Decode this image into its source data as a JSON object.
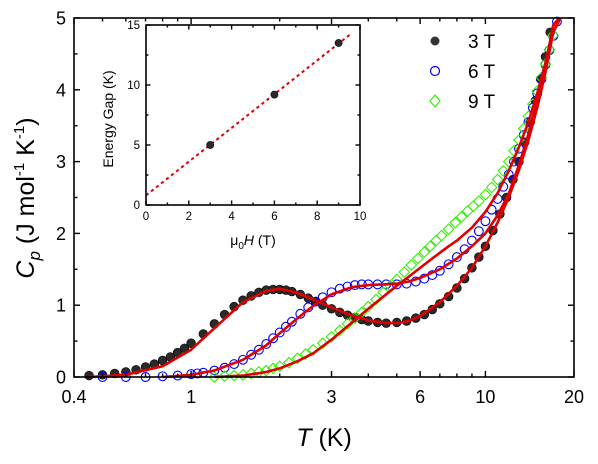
{
  "chart_data": [
    {
      "type": "scatter",
      "subtype": "scatter-with-fit-lines",
      "xscale": "log",
      "xlim": [
        0.4,
        20
      ],
      "ylim": [
        0,
        5
      ],
      "xticks": [
        0.4,
        1,
        3,
        6,
        10,
        20
      ],
      "xtick_labels": [
        "0.4",
        "1",
        "3",
        "6",
        "10",
        "20"
      ],
      "yticks": [
        0,
        1,
        2,
        3,
        4,
        5
      ],
      "ytick_labels": [
        "0",
        "1",
        "2",
        "3",
        "4",
        "5"
      ],
      "ylabel": {
        "main": "C",
        "sub": "p",
        "units_pre": " (J mol",
        "sup1": "-1",
        "units_mid": " K",
        "sup2": "-1",
        "units_post": ")"
      },
      "xlabel": {
        "main": "T",
        "units": " (K)"
      },
      "legend_position": "top-right",
      "colors": {
        "fit": "#e00000",
        "s3": "#000000",
        "s6": "#0000ff",
        "s9": "#33ee00"
      },
      "series": [
        {
          "name": "3 T",
          "marker": "filled-circle",
          "x": [
            0.45,
            0.5,
            0.55,
            0.6,
            0.65,
            0.7,
            0.75,
            0.8,
            0.85,
            0.9,
            0.95,
            1.0,
            1.1,
            1.2,
            1.3,
            1.4,
            1.5,
            1.6,
            1.7,
            1.8,
            1.9,
            2.0,
            2.1,
            2.2,
            2.35,
            2.5,
            2.65,
            2.8,
            3.0,
            3.2,
            3.4,
            3.6,
            3.8,
            4.0,
            4.3,
            4.6,
            5.0,
            5.4,
            5.8,
            6.2,
            6.6,
            7.0,
            7.5,
            8.0,
            8.5,
            9.0,
            9.5,
            10.0,
            10.6,
            11.2,
            11.8,
            12.4,
            13.0,
            13.6,
            14.2,
            14.8,
            15.4,
            16.0,
            16.6,
            17.2
          ],
          "y": [
            0.02,
            0.03,
            0.05,
            0.07,
            0.1,
            0.14,
            0.18,
            0.23,
            0.28,
            0.34,
            0.4,
            0.47,
            0.6,
            0.74,
            0.87,
            0.98,
            1.07,
            1.13,
            1.18,
            1.21,
            1.22,
            1.22,
            1.21,
            1.19,
            1.15,
            1.1,
            1.05,
            1.0,
            0.95,
            0.9,
            0.86,
            0.83,
            0.8,
            0.78,
            0.76,
            0.75,
            0.76,
            0.78,
            0.82,
            0.87,
            0.94,
            1.02,
            1.12,
            1.24,
            1.37,
            1.52,
            1.67,
            1.82,
            2.04,
            2.27,
            2.5,
            2.75,
            3.0,
            3.27,
            3.55,
            3.85,
            4.15,
            4.46,
            4.8,
            5.1
          ]
        },
        {
          "name": "6 T",
          "marker": "open-circle",
          "x": [
            0.5,
            0.6,
            0.7,
            0.8,
            0.9,
            1.0,
            1.05,
            1.1,
            1.2,
            1.3,
            1.4,
            1.5,
            1.6,
            1.7,
            1.8,
            1.9,
            2.0,
            2.1,
            2.2,
            2.35,
            2.5,
            2.65,
            2.8,
            3.0,
            3.2,
            3.4,
            3.6,
            3.8,
            4.0,
            4.3,
            4.6,
            5.0,
            5.4,
            5.8,
            6.2,
            6.6,
            7.0,
            7.5,
            8.0,
            8.5,
            9.0,
            9.5,
            10.0,
            10.5,
            11.0,
            11.5,
            12.0,
            12.5,
            13.0,
            13.5,
            14.0,
            14.5,
            15.0,
            15.5,
            16.0,
            16.5,
            17.0,
            17.5
          ],
          "y": [
            0.0,
            0.0,
            0.0,
            0.01,
            0.02,
            0.04,
            0.05,
            0.06,
            0.09,
            0.13,
            0.18,
            0.24,
            0.31,
            0.38,
            0.46,
            0.54,
            0.62,
            0.7,
            0.77,
            0.88,
            0.97,
            1.05,
            1.11,
            1.18,
            1.23,
            1.26,
            1.28,
            1.29,
            1.29,
            1.29,
            1.29,
            1.29,
            1.3,
            1.33,
            1.37,
            1.42,
            1.48,
            1.57,
            1.67,
            1.78,
            1.9,
            2.03,
            2.17,
            2.33,
            2.48,
            2.65,
            2.82,
            3.0,
            3.18,
            3.37,
            3.55,
            3.75,
            3.95,
            4.15,
            4.35,
            4.55,
            4.75,
            4.95
          ]
        },
        {
          "name": "9 T",
          "marker": "open-diamond",
          "x": [
            1.2,
            1.3,
            1.4,
            1.5,
            1.6,
            1.7,
            1.8,
            1.9,
            2.0,
            2.15,
            2.3,
            2.45,
            2.6,
            2.8,
            3.0,
            3.2,
            3.4,
            3.6,
            3.8,
            4.0,
            4.25,
            4.5,
            4.75,
            5.0,
            5.3,
            5.6,
            5.9,
            6.2,
            6.5,
            6.8,
            7.1,
            7.5,
            7.9,
            8.3,
            8.7,
            9.1,
            9.5,
            10.0,
            10.5,
            11.0,
            11.5,
            12.0,
            12.5,
            13.0,
            13.5,
            14.0,
            14.5,
            15.0,
            15.5,
            16.0,
            16.5,
            17.0
          ],
          "y": [
            0.0,
            0.01,
            0.02,
            0.03,
            0.05,
            0.07,
            0.09,
            0.12,
            0.15,
            0.2,
            0.26,
            0.32,
            0.38,
            0.47,
            0.56,
            0.65,
            0.74,
            0.82,
            0.9,
            0.98,
            1.08,
            1.18,
            1.27,
            1.36,
            1.46,
            1.56,
            1.65,
            1.74,
            1.82,
            1.9,
            1.97,
            2.06,
            2.15,
            2.23,
            2.31,
            2.38,
            2.45,
            2.54,
            2.64,
            2.75,
            2.87,
            3.0,
            3.15,
            3.3,
            3.46,
            3.63,
            3.8,
            3.98,
            4.17,
            4.36,
            4.56,
            4.76
          ]
        }
      ],
      "fit_curves": [
        {
          "x": [
            0.45,
            0.6,
            0.8,
            1.0,
            1.2,
            1.5,
            1.8,
            2.0,
            2.3,
            2.6,
            3.0,
            3.5,
            4.0,
            4.6,
            5.0,
            5.5,
            6.0,
            7.0,
            8.0,
            9.0,
            10.0,
            11.0,
            12.0,
            13.0,
            14.0,
            15.0,
            16.0,
            17.0,
            18.0
          ],
          "y": [
            0.0,
            0.03,
            0.15,
            0.38,
            0.68,
            1.04,
            1.2,
            1.23,
            1.17,
            1.08,
            0.97,
            0.86,
            0.79,
            0.75,
            0.75,
            0.78,
            0.85,
            1.04,
            1.27,
            1.52,
            1.82,
            2.15,
            2.5,
            2.88,
            3.3,
            3.75,
            4.25,
            4.8,
            5.4
          ]
        },
        {
          "x": [
            0.8,
            1.0,
            1.2,
            1.5,
            1.8,
            2.0,
            2.3,
            2.6,
            3.0,
            3.5,
            4.0,
            4.5,
            5.0,
            5.5,
            6.0,
            7.0,
            8.0,
            9.0,
            10.0,
            11.0,
            12.0,
            13.0,
            14.0,
            15.0,
            16.0,
            17.0,
            17.8
          ],
          "y": [
            0.0,
            0.03,
            0.09,
            0.24,
            0.44,
            0.61,
            0.82,
            0.99,
            1.15,
            1.25,
            1.28,
            1.29,
            1.3,
            1.33,
            1.38,
            1.5,
            1.65,
            1.82,
            2.0,
            2.25,
            2.55,
            2.95,
            3.38,
            3.85,
            4.35,
            4.9,
            5.4
          ]
        },
        {
          "x": [
            1.2,
            1.5,
            1.8,
            2.0,
            2.3,
            2.6,
            3.0,
            3.5,
            4.0,
            4.5,
            5.0,
            5.5,
            6.0,
            6.5,
            7.0,
            7.5,
            8.0,
            9.0,
            10.0,
            11.0,
            12.0,
            13.0,
            14.0,
            15.0,
            16.0,
            17.0
          ],
          "y": [
            0.0,
            0.02,
            0.07,
            0.12,
            0.22,
            0.33,
            0.52,
            0.75,
            0.95,
            1.12,
            1.27,
            1.4,
            1.52,
            1.63,
            1.73,
            1.82,
            1.9,
            2.08,
            2.3,
            2.56,
            2.87,
            3.2,
            3.55,
            3.95,
            4.38,
            4.85
          ]
        }
      ]
    },
    {
      "type": "scatter",
      "subtype": "inset-linear-fit",
      "xlim": [
        0,
        10
      ],
      "ylim": [
        0,
        15
      ],
      "xticks": [
        0,
        2,
        4,
        6,
        8,
        10
      ],
      "xtick_labels": [
        "0",
        "2",
        "4",
        "6",
        "8",
        "10"
      ],
      "yticks": [
        0,
        5,
        10,
        15
      ],
      "ytick_labels": [
        "0",
        "5",
        "10",
        "15"
      ],
      "ylabel": "Energy Gap  (K)",
      "xlabel": {
        "prefix": "μ",
        "sub": "0",
        "main": "H",
        "units": " (T)"
      },
      "points": {
        "x": [
          3,
          6,
          9
        ],
        "y": [
          5.0,
          9.2,
          13.5
        ]
      },
      "fit_line": {
        "x": [
          0,
          9.6
        ],
        "y": [
          0.8,
          14.3
        ]
      }
    }
  ]
}
